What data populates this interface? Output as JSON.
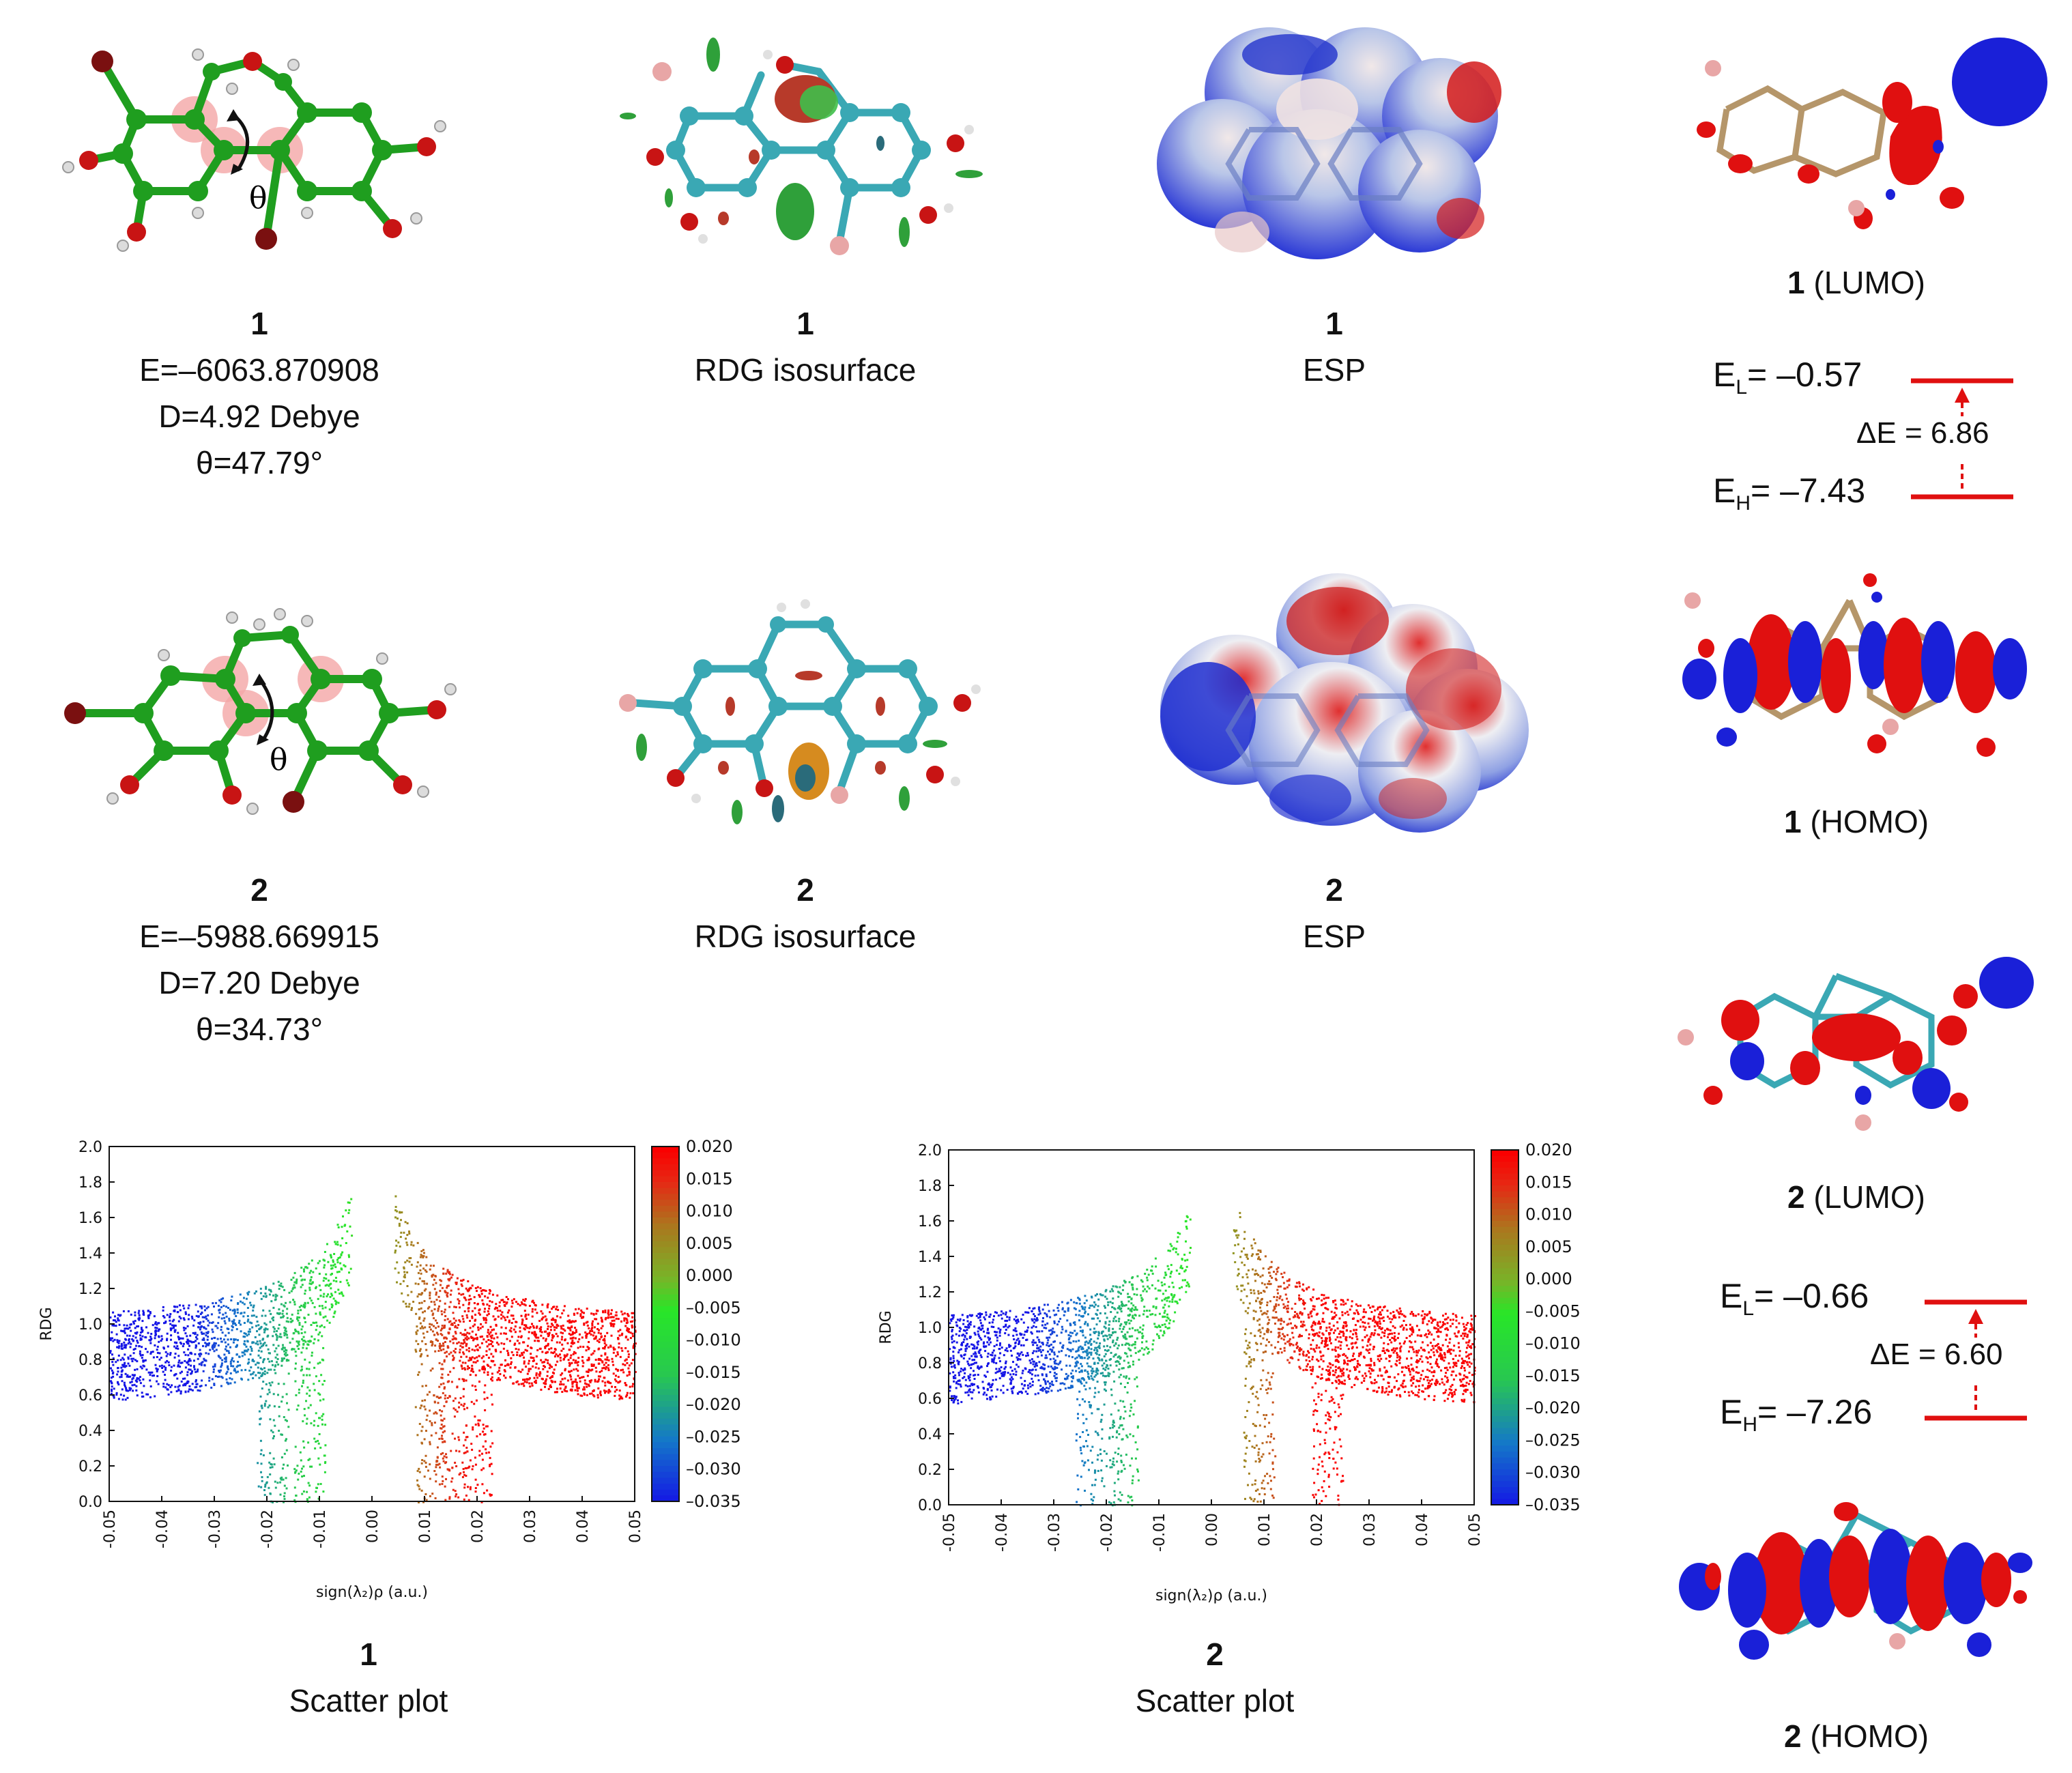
{
  "molecules": [
    {
      "id": "1",
      "E_label": "E=–6063.870908",
      "D_label": "D=4.92 Debye",
      "theta_label": "θ=47.79°",
      "theta_symbol": "θ"
    },
    {
      "id": "2",
      "E_label": "E=–5988.669915",
      "D_label": "D=7.20 Debye",
      "theta_label": "θ=34.73°",
      "theta_symbol": "θ"
    }
  ],
  "rdg": {
    "caption": "RDG isosurface"
  },
  "esp": {
    "caption": "ESP"
  },
  "orbitals": [
    {
      "id": "1",
      "lumo_caption": "(LUMO)",
      "homo_caption": "(HOMO)",
      "EL_prefix": "E",
      "EL_sub": "L",
      "EL_value": "= –0.57",
      "EH_prefix": "E",
      "EH_sub": "H",
      "EH_value": "= –7.43",
      "gap_label": "ΔE = 6.86"
    },
    {
      "id": "2",
      "lumo_caption": "(LUMO)",
      "homo_caption": "(HOMO)",
      "EL_prefix": "E",
      "EL_sub": "L",
      "EL_value": "= –0.66",
      "EH_prefix": "E",
      "EH_sub": "H",
      "EH_value": "= –7.26",
      "gap_label": "ΔE = 6.60"
    }
  ],
  "scatter": {
    "caption": "Scatter plot"
  },
  "chart_data": [
    {
      "type": "scatter",
      "molecule": "1",
      "xlabel": "sign(λ₂)ρ (a.u.)",
      "ylabel": "RDG",
      "xlim": [
        -0.05,
        0.05
      ],
      "ylim": [
        0.0,
        2.0
      ],
      "xticks": [
        "-0.05",
        "-0.04",
        "-0.03",
        "-0.02",
        "-0.01",
        "0.00",
        "0.01",
        "0.02",
        "0.03",
        "0.04",
        "0.05"
      ],
      "yticks": [
        "0.0",
        "0.2",
        "0.4",
        "0.6",
        "0.8",
        "1.0",
        "1.2",
        "1.4",
        "1.6",
        "1.8",
        "2.0"
      ],
      "colorbar": {
        "range": [
          -0.035,
          0.02
        ],
        "ticks": [
          "0.020",
          "0.015",
          "0.010",
          "0.005",
          "0.000",
          "-0.005",
          "-0.010",
          "-0.015",
          "-0.020",
          "-0.025",
          "-0.030",
          "-0.035"
        ]
      },
      "spikes": [
        -0.019,
        -0.012,
        0.011,
        0.015,
        0.02
      ],
      "grid": false
    },
    {
      "type": "scatter",
      "molecule": "2",
      "xlabel": "sign(λ₂)ρ (a.u.)",
      "ylabel": "RDG",
      "xlim": [
        -0.05,
        0.05
      ],
      "ylim": [
        0.0,
        2.0
      ],
      "xticks": [
        "-0.05",
        "-0.04",
        "-0.03",
        "-0.02",
        "-0.01",
        "0.00",
        "0.01",
        "0.02",
        "0.03",
        "0.04",
        "0.05"
      ],
      "yticks": [
        "0.0",
        "0.2",
        "0.4",
        "0.6",
        "0.8",
        "1.0",
        "1.2",
        "1.4",
        "1.6",
        "1.8",
        "2.0"
      ],
      "colorbar": {
        "range": [
          -0.035,
          0.02
        ],
        "ticks": [
          "0.020",
          "0.015",
          "0.010",
          "0.005",
          "0.000",
          "-0.005",
          "-0.010",
          "-0.015",
          "-0.020",
          "-0.025",
          "-0.030",
          "-0.035"
        ]
      },
      "spikes": [
        -0.023,
        -0.017,
        0.009,
        0.022
      ],
      "grid": false
    }
  ],
  "colors": {
    "bond": "#1f9e1f",
    "bond_cyan": "#3aa8b4",
    "oxygen": "#c81414",
    "bromine": "#7a1010",
    "hydrogen": "#e6e6e6",
    "highlight": "#f4a6a6",
    "red_lobe": "#e01010",
    "blue_lobe": "#1a20d8"
  }
}
